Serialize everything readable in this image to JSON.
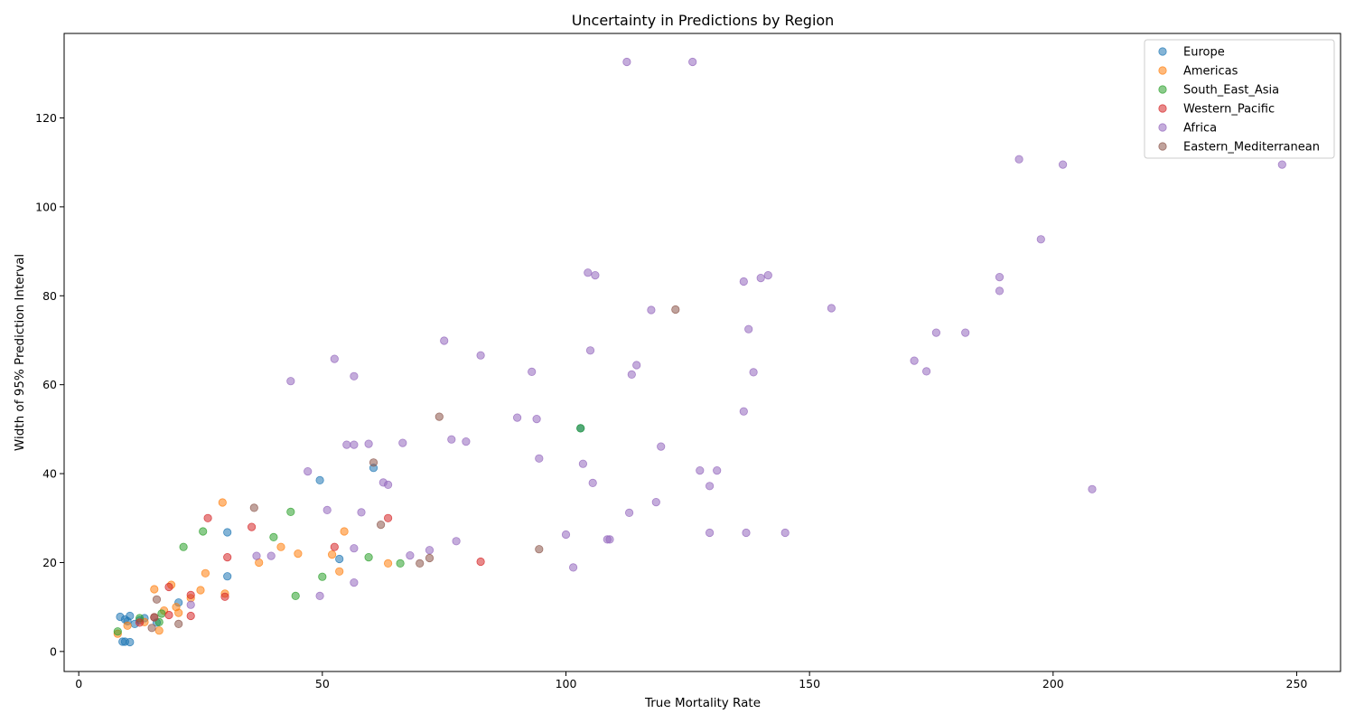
{
  "chart_data": {
    "type": "scatter",
    "title": "Uncertainty in Predictions by Region",
    "xlabel": "True Mortality Rate",
    "ylabel": "Width of 95% Prediction Interval",
    "xlim": [
      -3,
      259
    ],
    "ylim": [
      -4.5,
      139
    ],
    "xticks": [
      0,
      50,
      100,
      150,
      200,
      250
    ],
    "yticks": [
      0,
      20,
      40,
      60,
      80,
      100,
      120
    ],
    "grid": false,
    "legend_position": "top-right",
    "marker_alpha": 0.55,
    "series": [
      {
        "name": "Europe",
        "color": "#1f77b4",
        "points": [
          [
            8.5,
            7.8
          ],
          [
            9.5,
            7.2
          ],
          [
            10.0,
            6.8
          ],
          [
            10.5,
            8.0
          ],
          [
            11.5,
            6.2
          ],
          [
            12.5,
            7.0
          ],
          [
            13.5,
            7.5
          ],
          [
            9.0,
            2.2
          ],
          [
            9.5,
            2.2
          ],
          [
            10.5,
            2.1
          ],
          [
            16.0,
            6.5
          ],
          [
            20.5,
            11.0
          ],
          [
            30.5,
            26.8
          ],
          [
            30.5,
            16.9
          ],
          [
            49.5,
            38.5
          ],
          [
            53.5,
            20.8
          ],
          [
            60.5,
            41.3
          ],
          [
            103.0,
            50.2
          ]
        ]
      },
      {
        "name": "Americas",
        "color": "#ff7f0e",
        "points": [
          [
            8.0,
            4.0
          ],
          [
            10.0,
            5.8
          ],
          [
            13.5,
            6.6
          ],
          [
            15.5,
            14.0
          ],
          [
            16.5,
            4.7
          ],
          [
            17.5,
            9.2
          ],
          [
            19.0,
            15.0
          ],
          [
            20.0,
            10.0
          ],
          [
            20.5,
            8.7
          ],
          [
            23.0,
            12.0
          ],
          [
            25.0,
            13.8
          ],
          [
            26.0,
            17.6
          ],
          [
            29.5,
            33.5
          ],
          [
            30.0,
            13.0
          ],
          [
            37.0,
            20.0
          ],
          [
            41.5,
            23.5
          ],
          [
            45.0,
            22.0
          ],
          [
            52.0,
            21.8
          ],
          [
            53.5,
            18.0
          ],
          [
            54.5,
            27.0
          ],
          [
            63.5,
            19.8
          ]
        ]
      },
      {
        "name": "South_East_Asia",
        "color": "#2ca02c",
        "points": [
          [
            8.0,
            4.5
          ],
          [
            12.5,
            7.5
          ],
          [
            16.5,
            6.6
          ],
          [
            17.0,
            8.5
          ],
          [
            21.5,
            23.5
          ],
          [
            25.5,
            27.0
          ],
          [
            40.0,
            25.7
          ],
          [
            43.5,
            31.4
          ],
          [
            44.5,
            12.5
          ],
          [
            50.0,
            16.8
          ],
          [
            59.5,
            21.2
          ],
          [
            66.0,
            19.8
          ],
          [
            103.0,
            50.2
          ]
        ]
      },
      {
        "name": "Western_Pacific",
        "color": "#d62728",
        "points": [
          [
            12.5,
            6.5
          ],
          [
            15.5,
            7.7
          ],
          [
            18.5,
            8.2
          ],
          [
            18.5,
            14.5
          ],
          [
            23.0,
            12.7
          ],
          [
            23.0,
            8.0
          ],
          [
            26.5,
            30.0
          ],
          [
            30.0,
            12.3
          ],
          [
            30.5,
            21.2
          ],
          [
            35.5,
            28.0
          ],
          [
            52.5,
            23.5
          ],
          [
            63.5,
            30.0
          ],
          [
            82.5,
            20.2
          ]
        ]
      },
      {
        "name": "Africa",
        "color": "#9467bd",
        "points": [
          [
            23.0,
            10.5
          ],
          [
            36.5,
            21.5
          ],
          [
            39.5,
            21.5
          ],
          [
            43.5,
            60.8
          ],
          [
            47.0,
            40.5
          ],
          [
            49.5,
            12.5
          ],
          [
            51.0,
            31.8
          ],
          [
            52.5,
            65.8
          ],
          [
            55.0,
            46.5
          ],
          [
            56.5,
            46.5
          ],
          [
            56.5,
            61.9
          ],
          [
            56.5,
            23.2
          ],
          [
            56.5,
            15.5
          ],
          [
            58.0,
            31.3
          ],
          [
            59.5,
            46.7
          ],
          [
            62.5,
            38.0
          ],
          [
            63.5,
            37.5
          ],
          [
            66.5,
            46.9
          ],
          [
            68.0,
            21.6
          ],
          [
            72.0,
            22.8
          ],
          [
            75.0,
            69.9
          ],
          [
            76.5,
            47.7
          ],
          [
            77.5,
            24.8
          ],
          [
            79.5,
            47.2
          ],
          [
            82.5,
            66.6
          ],
          [
            90.0,
            52.6
          ],
          [
            93.0,
            62.9
          ],
          [
            94.0,
            52.3
          ],
          [
            94.5,
            43.4
          ],
          [
            100.0,
            26.3
          ],
          [
            101.5,
            18.9
          ],
          [
            103.5,
            42.2
          ],
          [
            104.5,
            85.2
          ],
          [
            105.0,
            67.7
          ],
          [
            105.5,
            37.9
          ],
          [
            106.0,
            84.6
          ],
          [
            108.5,
            25.2
          ],
          [
            109.0,
            25.2
          ],
          [
            112.5,
            132.6
          ],
          [
            113.0,
            31.2
          ],
          [
            113.5,
            62.3
          ],
          [
            114.5,
            64.4
          ],
          [
            117.5,
            76.8
          ],
          [
            118.5,
            33.6
          ],
          [
            119.5,
            46.1
          ],
          [
            126.0,
            132.6
          ],
          [
            127.5,
            40.7
          ],
          [
            129.5,
            37.2
          ],
          [
            129.5,
            26.7
          ],
          [
            131.0,
            40.7
          ],
          [
            136.5,
            54.0
          ],
          [
            136.5,
            83.2
          ],
          [
            137.0,
            26.7
          ],
          [
            137.5,
            72.5
          ],
          [
            138.5,
            62.8
          ],
          [
            140.0,
            84.0
          ],
          [
            141.5,
            84.6
          ],
          [
            145.0,
            26.7
          ],
          [
            154.5,
            77.2
          ],
          [
            171.5,
            65.4
          ],
          [
            174.0,
            63.0
          ],
          [
            176.0,
            71.7
          ],
          [
            182.0,
            71.7
          ],
          [
            189.0,
            81.1
          ],
          [
            189.0,
            84.2
          ],
          [
            193.0,
            110.7
          ],
          [
            197.5,
            92.7
          ],
          [
            202.0,
            109.5
          ],
          [
            208.0,
            36.5
          ],
          [
            247.0,
            109.5
          ]
        ]
      },
      {
        "name": "Eastern_Mediterranean",
        "color": "#8c564b",
        "points": [
          [
            15.0,
            5.3
          ],
          [
            15.5,
            7.7
          ],
          [
            16.0,
            11.7
          ],
          [
            20.5,
            6.2
          ],
          [
            36.0,
            32.3
          ],
          [
            60.5,
            42.5
          ],
          [
            62.0,
            28.5
          ],
          [
            70.0,
            19.8
          ],
          [
            72.0,
            21.0
          ],
          [
            74.0,
            52.8
          ],
          [
            94.5,
            23.0
          ],
          [
            122.5,
            76.9
          ]
        ]
      }
    ]
  }
}
